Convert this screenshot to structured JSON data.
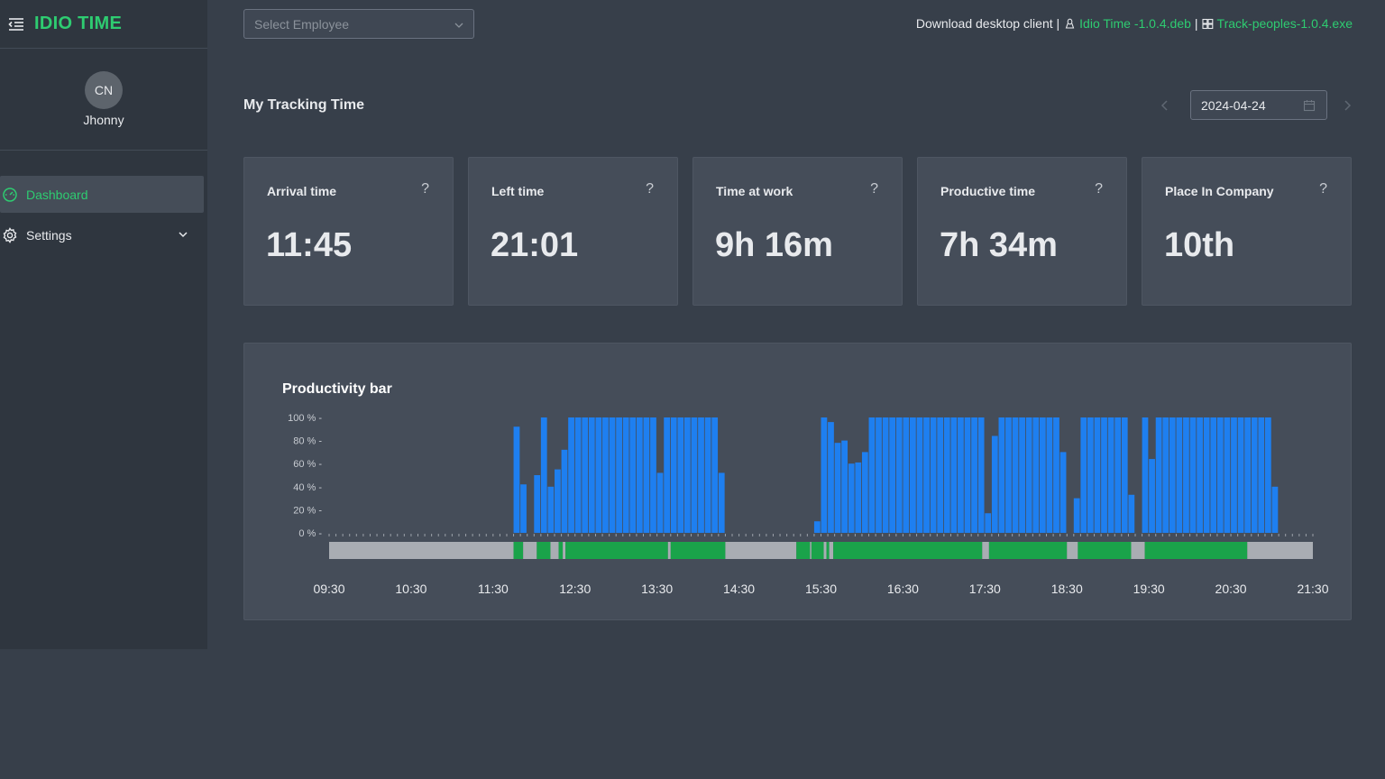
{
  "app": {
    "name": "IDIO TIME"
  },
  "user": {
    "initials": "CN",
    "name": "Jhonny"
  },
  "nav": {
    "dashboard": "Dashboard",
    "settings": "Settings"
  },
  "topbar": {
    "select_placeholder": "Select Employee",
    "download_prefix": "Download desktop client |",
    "deb_link": "Idio Time -1.0.4.deb",
    "sep": "|",
    "exe_link": "Track-peoples-1.0.4.exe"
  },
  "page": {
    "title": "My Tracking Time",
    "date": "2024-04-24"
  },
  "cards": [
    {
      "label": "Arrival time",
      "value": "11:45",
      "help": "?"
    },
    {
      "label": "Left time",
      "value": "21:01",
      "help": "?"
    },
    {
      "label": "Time at work",
      "value": "9h 16m",
      "help": "?"
    },
    {
      "label": "Productive time",
      "value": "7h 34m",
      "help": "?"
    },
    {
      "label": "Place In Company",
      "value": "10th",
      "help": "?"
    }
  ],
  "colors": {
    "accent": "#2ecc71",
    "bar": "#1e7ff0",
    "active": "#1aa34a",
    "idle": "#a9adb3"
  },
  "chart_data": {
    "type": "bar",
    "title": "Productivity bar",
    "y_ticks": [
      "100 % -",
      "80 % -",
      "60 % -",
      "40 % -",
      "20 % -",
      "0 % -"
    ],
    "ylim": [
      0,
      100
    ],
    "x_ticks": [
      "09:30",
      "10:30",
      "11:30",
      "12:30",
      "13:30",
      "14:30",
      "15:30",
      "16:30",
      "17:30",
      "18:30",
      "19:30",
      "20:30",
      "21:30"
    ],
    "x_range_minutes": [
      570,
      1290
    ],
    "series": [
      {
        "values": [
          [
            705,
            92
          ],
          [
            710,
            42
          ],
          [
            715,
            0
          ],
          [
            720,
            50
          ],
          [
            725,
            100
          ],
          [
            730,
            40
          ],
          [
            735,
            55
          ],
          [
            740,
            72
          ],
          [
            745,
            100
          ],
          [
            750,
            100
          ],
          [
            755,
            100
          ],
          [
            760,
            100
          ],
          [
            765,
            100
          ],
          [
            770,
            100
          ],
          [
            775,
            100
          ],
          [
            780,
            100
          ],
          [
            785,
            100
          ],
          [
            790,
            100
          ],
          [
            795,
            100
          ],
          [
            800,
            100
          ],
          [
            805,
            100
          ],
          [
            810,
            52
          ],
          [
            815,
            100
          ],
          [
            820,
            100
          ],
          [
            825,
            100
          ],
          [
            830,
            100
          ],
          [
            835,
            100
          ],
          [
            840,
            100
          ],
          [
            845,
            100
          ],
          [
            850,
            100
          ],
          [
            855,
            52
          ],
          [
            925,
            10
          ],
          [
            930,
            100
          ],
          [
            935,
            96
          ],
          [
            940,
            78
          ],
          [
            945,
            80
          ],
          [
            950,
            60
          ],
          [
            955,
            61
          ],
          [
            960,
            70
          ],
          [
            965,
            100
          ],
          [
            970,
            100
          ],
          [
            975,
            100
          ],
          [
            980,
            100
          ],
          [
            985,
            100
          ],
          [
            990,
            100
          ],
          [
            995,
            100
          ],
          [
            1000,
            100
          ],
          [
            1005,
            100
          ],
          [
            1010,
            100
          ],
          [
            1015,
            100
          ],
          [
            1020,
            100
          ],
          [
            1025,
            100
          ],
          [
            1030,
            100
          ],
          [
            1035,
            100
          ],
          [
            1040,
            100
          ],
          [
            1045,
            100
          ],
          [
            1050,
            17
          ],
          [
            1055,
            84
          ],
          [
            1060,
            100
          ],
          [
            1065,
            100
          ],
          [
            1070,
            100
          ],
          [
            1075,
            100
          ],
          [
            1080,
            100
          ],
          [
            1085,
            100
          ],
          [
            1090,
            100
          ],
          [
            1095,
            100
          ],
          [
            1100,
            100
          ],
          [
            1105,
            70
          ],
          [
            1110,
            0
          ],
          [
            1115,
            30
          ],
          [
            1120,
            100
          ],
          [
            1125,
            100
          ],
          [
            1130,
            100
          ],
          [
            1135,
            100
          ],
          [
            1140,
            100
          ],
          [
            1145,
            100
          ],
          [
            1150,
            100
          ],
          [
            1155,
            33
          ],
          [
            1165,
            100
          ],
          [
            1170,
            64
          ],
          [
            1175,
            100
          ],
          [
            1180,
            100
          ],
          [
            1185,
            100
          ],
          [
            1190,
            100
          ],
          [
            1195,
            100
          ],
          [
            1200,
            100
          ],
          [
            1205,
            100
          ],
          [
            1210,
            100
          ],
          [
            1215,
            100
          ],
          [
            1220,
            100
          ],
          [
            1225,
            100
          ],
          [
            1230,
            100
          ],
          [
            1235,
            100
          ],
          [
            1240,
            100
          ],
          [
            1245,
            100
          ],
          [
            1250,
            100
          ],
          [
            1255,
            100
          ],
          [
            1260,
            40
          ]
        ]
      }
    ],
    "activity_strip": [
      {
        "start": 570,
        "end": 705,
        "state": "idle"
      },
      {
        "start": 705,
        "end": 712,
        "state": "active"
      },
      {
        "start": 712,
        "end": 722,
        "state": "idle"
      },
      {
        "start": 722,
        "end": 732,
        "state": "active"
      },
      {
        "start": 732,
        "end": 738,
        "state": "idle"
      },
      {
        "start": 738,
        "end": 741,
        "state": "active"
      },
      {
        "start": 741,
        "end": 743,
        "state": "idle"
      },
      {
        "start": 743,
        "end": 818,
        "state": "active"
      },
      {
        "start": 818,
        "end": 820,
        "state": "idle"
      },
      {
        "start": 820,
        "end": 860,
        "state": "active"
      },
      {
        "start": 860,
        "end": 912,
        "state": "idle"
      },
      {
        "start": 912,
        "end": 922,
        "state": "active"
      },
      {
        "start": 922,
        "end": 923,
        "state": "idle"
      },
      {
        "start": 923,
        "end": 932,
        "state": "active"
      },
      {
        "start": 932,
        "end": 934,
        "state": "idle"
      },
      {
        "start": 934,
        "end": 936,
        "state": "active"
      },
      {
        "start": 936,
        "end": 939,
        "state": "idle"
      },
      {
        "start": 939,
        "end": 1048,
        "state": "active"
      },
      {
        "start": 1048,
        "end": 1053,
        "state": "idle"
      },
      {
        "start": 1053,
        "end": 1110,
        "state": "active"
      },
      {
        "start": 1110,
        "end": 1118,
        "state": "idle"
      },
      {
        "start": 1118,
        "end": 1157,
        "state": "active"
      },
      {
        "start": 1157,
        "end": 1167,
        "state": "idle"
      },
      {
        "start": 1167,
        "end": 1242,
        "state": "active"
      },
      {
        "start": 1242,
        "end": 1290,
        "state": "idle"
      }
    ]
  }
}
